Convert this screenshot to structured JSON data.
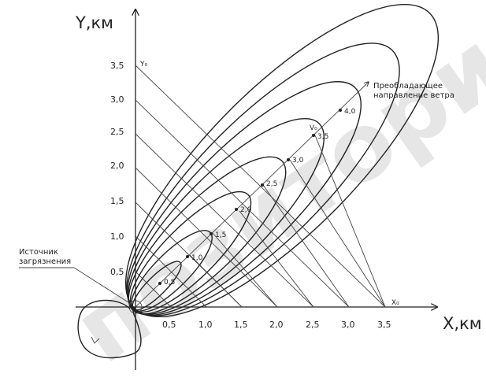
{
  "axes": {
    "x_title": "X,км",
    "y_title": "Y,км",
    "x_ticks": [
      "0,5",
      "1,0",
      "1,5",
      "2,0",
      "2,5",
      "3,0",
      "3,5"
    ],
    "y_ticks": [
      "0,5",
      "1,0",
      "1,5",
      "2,0",
      "2,5",
      "3,0",
      "3,5"
    ]
  },
  "labels": {
    "wind_line1": "Преобладающее",
    "wind_line2": "направление ветра",
    "source_line1": "Источник",
    "source_line2": "загрязнения",
    "point_x0": "X₀",
    "point_y0": "Y₀",
    "point_v0": "V₀"
  },
  "diagonal_values": [
    "0,5",
    "1,0",
    "1,5",
    "2,0",
    "2,5",
    "3,0",
    "3,5",
    "4,0"
  ],
  "watermark": "позитории"
}
